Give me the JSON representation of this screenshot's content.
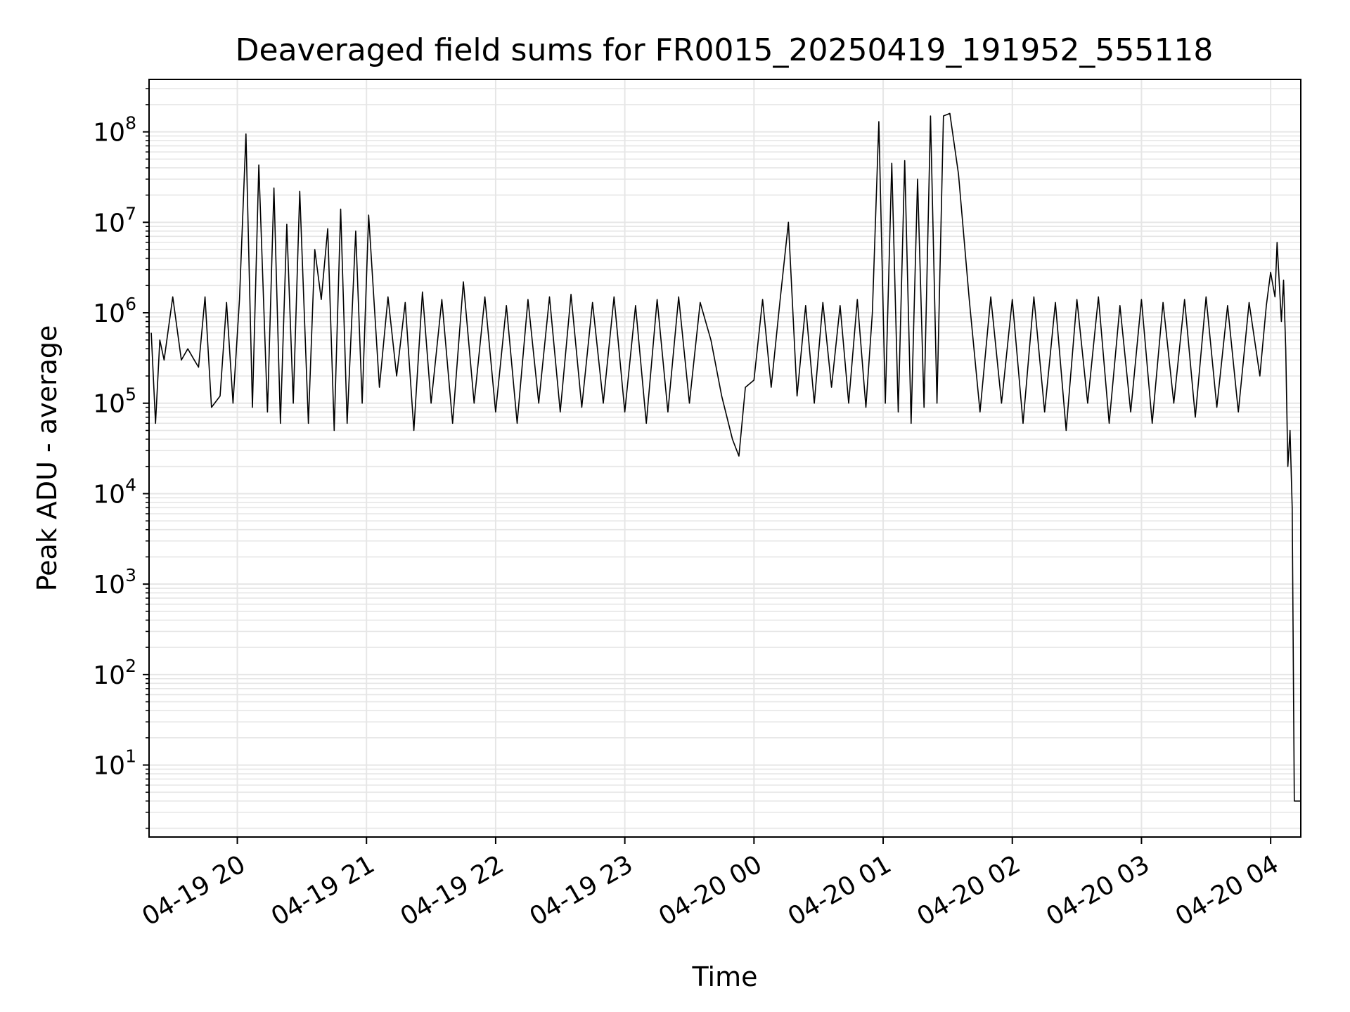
{
  "chart_data": {
    "type": "line",
    "title": "Deaveraged field sums for FR0015_20250419_191952_555118",
    "xlabel": "Time",
    "ylabel": "Peak ADU - average",
    "yscale": "log",
    "ylim": [
      1.6,
      380000000.0
    ],
    "xlim": [
      "2025-04-19 19:19",
      "2025-04-20 04:14"
    ],
    "grid": true,
    "line_color": "#000000",
    "grid_color": "#e6e6e6",
    "x_ticks": [
      {
        "label": "04-19 20",
        "value": "2025-04-19 20:00"
      },
      {
        "label": "04-19 21",
        "value": "2025-04-19 21:00"
      },
      {
        "label": "04-19 22",
        "value": "2025-04-19 22:00"
      },
      {
        "label": "04-19 23",
        "value": "2025-04-19 23:00"
      },
      {
        "label": "04-20 00",
        "value": "2025-04-20 00:00"
      },
      {
        "label": "04-20 01",
        "value": "2025-04-20 01:00"
      },
      {
        "label": "04-20 02",
        "value": "2025-04-20 02:00"
      },
      {
        "label": "04-20 03",
        "value": "2025-04-20 03:00"
      },
      {
        "label": "04-20 04",
        "value": "2025-04-20 04:00"
      }
    ],
    "y_ticks": [
      {
        "base": "10",
        "exp": "1",
        "value": 10
      },
      {
        "base": "10",
        "exp": "2",
        "value": 100
      },
      {
        "base": "10",
        "exp": "3",
        "value": 1000
      },
      {
        "base": "10",
        "exp": "4",
        "value": 10000
      },
      {
        "base": "10",
        "exp": "5",
        "value": 100000
      },
      {
        "base": "10",
        "exp": "6",
        "value": 1000000
      },
      {
        "base": "10",
        "exp": "7",
        "value": 10000000
      },
      {
        "base": "10",
        "exp": "8",
        "value": 100000000
      }
    ],
    "series": [
      {
        "x": [
          "2025-04-19 19:20",
          "2025-04-19 19:22",
          "2025-04-19 19:24",
          "2025-04-19 19:26",
          "2025-04-19 19:30",
          "2025-04-19 19:34",
          "2025-04-19 19:37",
          "2025-04-19 19:40",
          "2025-04-19 19:42",
          "2025-04-19 19:45",
          "2025-04-19 19:48",
          "2025-04-19 19:52",
          "2025-04-19 19:55",
          "2025-04-19 19:58",
          "2025-04-19 20:01",
          "2025-04-19 20:04",
          "2025-04-19 20:07",
          "2025-04-19 20:10",
          "2025-04-19 20:14",
          "2025-04-19 20:17",
          "2025-04-19 20:20",
          "2025-04-19 20:23",
          "2025-04-19 20:26",
          "2025-04-19 20:29",
          "2025-04-19 20:33",
          "2025-04-19 20:36",
          "2025-04-19 20:39",
          "2025-04-19 20:42",
          "2025-04-19 20:45",
          "2025-04-19 20:48",
          "2025-04-19 20:51",
          "2025-04-19 20:55",
          "2025-04-19 20:58",
          "2025-04-19 21:01",
          "2025-04-19 21:06",
          "2025-04-19 21:10",
          "2025-04-19 21:14",
          "2025-04-19 21:18",
          "2025-04-19 21:22",
          "2025-04-19 21:26",
          "2025-04-19 21:30",
          "2025-04-19 21:35",
          "2025-04-19 21:40",
          "2025-04-19 21:45",
          "2025-04-19 21:50",
          "2025-04-19 21:55",
          "2025-04-19 22:00",
          "2025-04-19 22:05",
          "2025-04-19 22:10",
          "2025-04-19 22:15",
          "2025-04-19 22:20",
          "2025-04-19 22:25",
          "2025-04-19 22:30",
          "2025-04-19 22:35",
          "2025-04-19 22:40",
          "2025-04-19 22:45",
          "2025-04-19 22:50",
          "2025-04-19 22:55",
          "2025-04-19 23:00",
          "2025-04-19 23:05",
          "2025-04-19 23:10",
          "2025-04-19 23:15",
          "2025-04-19 23:20",
          "2025-04-19 23:25",
          "2025-04-19 23:30",
          "2025-04-19 23:35",
          "2025-04-19 23:40",
          "2025-04-19 23:45",
          "2025-04-19 23:50",
          "2025-04-19 23:53",
          "2025-04-19 23:56",
          "2025-04-20 00:00",
          "2025-04-20 00:04",
          "2025-04-20 00:08",
          "2025-04-20 00:12",
          "2025-04-20 00:16",
          "2025-04-20 00:20",
          "2025-04-20 00:24",
          "2025-04-20 00:28",
          "2025-04-20 00:32",
          "2025-04-20 00:36",
          "2025-04-20 00:40",
          "2025-04-20 00:44",
          "2025-04-20 00:48",
          "2025-04-20 00:52",
          "2025-04-20 00:55",
          "2025-04-20 00:58",
          "2025-04-20 01:01",
          "2025-04-20 01:04",
          "2025-04-20 01:07",
          "2025-04-20 01:10",
          "2025-04-20 01:13",
          "2025-04-20 01:16",
          "2025-04-20 01:19",
          "2025-04-20 01:22",
          "2025-04-20 01:25",
          "2025-04-20 01:28",
          "2025-04-20 01:31",
          "2025-04-20 01:35",
          "2025-04-20 01:40",
          "2025-04-20 01:45",
          "2025-04-20 01:50",
          "2025-04-20 01:55",
          "2025-04-20 02:00",
          "2025-04-20 02:05",
          "2025-04-20 02:10",
          "2025-04-20 02:15",
          "2025-04-20 02:20",
          "2025-04-20 02:25",
          "2025-04-20 02:30",
          "2025-04-20 02:35",
          "2025-04-20 02:40",
          "2025-04-20 02:45",
          "2025-04-20 02:50",
          "2025-04-20 02:55",
          "2025-04-20 03:00",
          "2025-04-20 03:05",
          "2025-04-20 03:10",
          "2025-04-20 03:15",
          "2025-04-20 03:20",
          "2025-04-20 03:25",
          "2025-04-20 03:30",
          "2025-04-20 03:35",
          "2025-04-20 03:40",
          "2025-04-20 03:45",
          "2025-04-20 03:50",
          "2025-04-20 03:55",
          "2025-04-20 03:58",
          "2025-04-20 04:00",
          "2025-04-20 04:02",
          "2025-04-20 04:03",
          "2025-04-20 04:05",
          "2025-04-20 04:06",
          "2025-04-20 04:07",
          "2025-04-20 04:08",
          "2025-04-20 04:09",
          "2025-04-20 04:10",
          "2025-04-20 04:11",
          "2025-04-20 04:12",
          "2025-04-20 04:13",
          "2025-04-20 04:14"
        ],
        "y": [
          600000,
          60000,
          500000,
          300000,
          1500000,
          300000,
          400000,
          300000,
          250000,
          1500000,
          90000,
          120000,
          1300000,
          100000,
          1400000,
          95000000,
          90000,
          43000000,
          80000,
          24000000,
          60000,
          9500000,
          100000,
          22000000,
          60000,
          5000000,
          1400000,
          8500000,
          50000,
          14000000,
          60000,
          8000000,
          100000,
          12000000,
          150000,
          1500000,
          200000,
          1300000,
          50000,
          1700000,
          100000,
          1400000,
          60000,
          2200000,
          100000,
          1500000,
          80000,
          1200000,
          60000,
          1400000,
          100000,
          1500000,
          80000,
          1600000,
          90000,
          1300000,
          100000,
          1500000,
          80000,
          1200000,
          60000,
          1400000,
          80000,
          1500000,
          100000,
          1300000,
          500000,
          120000,
          40000,
          26000,
          150000,
          180000,
          1400000,
          150000,
          1300000,
          10000000,
          120000,
          1200000,
          100000,
          1300000,
          150000,
          1200000,
          100000,
          1400000,
          90000,
          1000000,
          130000000,
          100000,
          45000000,
          80000,
          48000000,
          60000,
          30000000,
          90000,
          150000000,
          100000,
          150000000,
          160000000,
          34000000,
          1400000,
          80000,
          1500000,
          100000,
          1400000,
          60000,
          1500000,
          80000,
          1300000,
          50000,
          1400000,
          100000,
          1500000,
          60000,
          1200000,
          80000,
          1400000,
          60000,
          1300000,
          100000,
          1400000,
          70000,
          1500000,
          90000,
          1200000,
          80000,
          1300000,
          200000,
          1200000,
          2800000,
          1500000,
          6000000,
          800000,
          2300000,
          400000,
          20000,
          50000,
          7000,
          4,
          4,
          4,
          4
        ]
      }
    ]
  }
}
